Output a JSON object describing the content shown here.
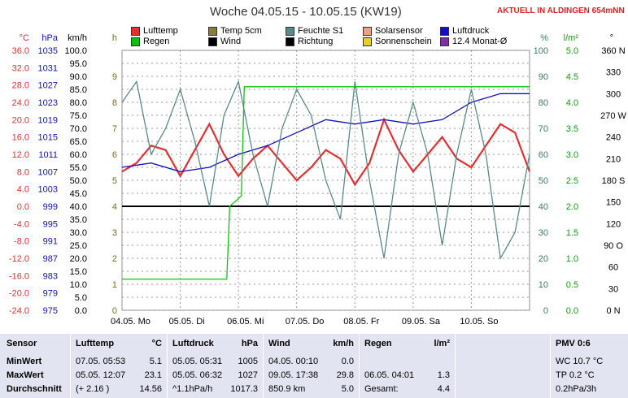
{
  "header": {
    "title": "Woche 04.05.15 - 10.05.15 (KW19)",
    "current": "AKTUELL IN ALDINGEN 654mNN"
  },
  "legend": [
    {
      "label": "Lufttemp",
      "color": "#e03030"
    },
    {
      "label": "Temp 5cm",
      "color": "#8a7a40"
    },
    {
      "label": "Feuchte S1",
      "color": "#5a8a88"
    },
    {
      "label": "Solarsensor",
      "color": "#f0a080"
    },
    {
      "label": "Luftdruck",
      "color": "#1010c0"
    },
    {
      "label": "Regen",
      "color": "#10c010"
    },
    {
      "label": "Wind",
      "color": "#000000"
    },
    {
      "label": "Richtung",
      "color": "#000000"
    },
    {
      "label": "Sonnenschein",
      "color": "#e8d020"
    },
    {
      "label": "12.4 Monat-Ø",
      "color": "#8030a0"
    }
  ],
  "axis_units": {
    "temp": "°C",
    "hpa": "hPa",
    "kmh": "km/h",
    "h": "h",
    "pct": "%",
    "lm2": "l/m²",
    "deg": "°"
  },
  "chart_data": {
    "type": "line",
    "x_labels": [
      "04.05. Mo",
      "05.05. Di",
      "06.05. Mi",
      "07.05. Do",
      "08.05. Fr",
      "09.05. Sa",
      "10.05. So"
    ],
    "axes": {
      "temp": {
        "ticks": [
          "36.0",
          "32.0",
          "28.0",
          "24.0",
          "20.0",
          "16.0",
          "12.0",
          "8.0",
          "4.0",
          "0.0",
          "-4.0",
          "-8.0",
          "-12.0",
          "-16.0",
          "-20.0",
          "-24.0"
        ],
        "ylim": [
          -24,
          36
        ]
      },
      "hpa": {
        "ticks": [
          "1035",
          "1031",
          "1027",
          "1023",
          "1019",
          "1015",
          "1011",
          "1007",
          "1003",
          "999",
          "995",
          "991",
          "987",
          "983",
          "979",
          "975"
        ],
        "ylim": [
          975,
          1035
        ]
      },
      "kmh": {
        "ticks": [
          "100.0",
          "95.0",
          "90.0",
          "85.0",
          "80.0",
          "75.0",
          "70.0",
          "65.0",
          "60.0",
          "55.0",
          "50.0",
          "45.0",
          "40.0",
          "35.0",
          "30.0",
          "25.0",
          "20.0",
          "15.0",
          "10.0",
          "5.0",
          "0.0"
        ],
        "ylim": [
          0,
          100
        ]
      },
      "h": {
        "ticks": [
          "9",
          "8",
          "7",
          "6",
          "5",
          "4",
          "3",
          "2",
          "1",
          "0"
        ],
        "ylim": [
          0,
          10
        ]
      },
      "pct": {
        "ticks": [
          "100",
          "90",
          "80",
          "70",
          "60",
          "50",
          "40",
          "30",
          "20",
          "10",
          "0"
        ],
        "ylim": [
          0,
          100
        ]
      },
      "lm2": {
        "ticks": [
          "5.0",
          "4.5",
          "4.0",
          "3.5",
          "3.0",
          "2.5",
          "2.0",
          "1.5",
          "1.0",
          "0.5",
          "0.0"
        ],
        "ylim": [
          0,
          5
        ]
      },
      "deg": {
        "ticks": [
          "360 N",
          "330",
          "300",
          "270 W",
          "240",
          "210",
          "180 S",
          "150",
          "120",
          "90 O",
          "60",
          "30",
          "0 N"
        ],
        "ylim": [
          0,
          360
        ]
      }
    },
    "series": [
      {
        "name": "Lufttemp",
        "x": [
          0,
          0.25,
          0.5,
          0.75,
          1,
          1.25,
          1.5,
          1.75,
          2,
          2.25,
          2.5,
          2.75,
          3,
          3.25,
          3.5,
          3.75,
          4,
          4.25,
          4.5,
          4.75,
          5,
          5.25,
          5.5,
          5.75,
          6,
          6.25,
          6.5,
          6.75,
          7
        ],
        "values": [
          8,
          10,
          14,
          13,
          7,
          13,
          19,
          12,
          7,
          11,
          14,
          10,
          6,
          9,
          13,
          11,
          5,
          10,
          20,
          13,
          8,
          12,
          16,
          11,
          9,
          14,
          19,
          17,
          8
        ]
      },
      {
        "name": "Luftdruck",
        "x": [
          0,
          0.5,
          1,
          1.5,
          2,
          2.5,
          3,
          3.5,
          4,
          4.5,
          5,
          5.5,
          6,
          6.5,
          7
        ],
        "values": [
          1008,
          1009,
          1007,
          1008,
          1011,
          1013,
          1016,
          1019,
          1018,
          1019,
          1018,
          1019,
          1023,
          1025,
          1025
        ]
      },
      {
        "name": "Feuchte S1",
        "x": [
          0,
          0.25,
          0.5,
          0.75,
          1,
          1.25,
          1.5,
          1.75,
          2,
          2.25,
          2.5,
          2.75,
          3,
          3.25,
          3.5,
          3.75,
          4,
          4.25,
          4.5,
          4.75,
          5,
          5.25,
          5.5,
          5.75,
          6,
          6.25,
          6.5,
          6.75,
          7
        ],
        "values": [
          80,
          88,
          60,
          70,
          85,
          65,
          40,
          75,
          88,
          60,
          40,
          70,
          85,
          75,
          50,
          35,
          88,
          50,
          20,
          60,
          80,
          60,
          25,
          60,
          85,
          60,
          20,
          30,
          60
        ]
      },
      {
        "name": "Regen",
        "x": [
          0,
          1.8,
          1.85,
          2.05,
          2.1,
          2.5,
          7
        ],
        "values": [
          0.6,
          0.6,
          2.0,
          2.2,
          4.3,
          4.3,
          4.3
        ]
      }
    ],
    "ylabel_left": "°C",
    "grid": true
  },
  "stats": {
    "sensor": {
      "title": "Sensor",
      "rows": [
        "MinWert",
        "MaxWert",
        "Durchschnitt"
      ]
    },
    "lufttemp": {
      "title": "Lufttemp",
      "unit": "°C",
      "rows": [
        {
          "a": "07.05.  05:53",
          "v": "5.1"
        },
        {
          "a": "05.05.  12:07",
          "v": "23.1"
        },
        {
          "a": "(+ 2.16 )",
          "v": "14.56"
        }
      ]
    },
    "luftdruck": {
      "title": "Luftdruck",
      "unit": "hPa",
      "rows": [
        {
          "a": "05.05.  05:31",
          "v": "1005"
        },
        {
          "a": "05.05.  06:32",
          "v": "1027"
        },
        {
          "a": "^1.1hPa/h",
          "v": "1017.3"
        }
      ]
    },
    "wind": {
      "title": "Wind",
      "unit": "km/h",
      "rows": [
        {
          "a": "04.05.  00:10",
          "v": "0.0"
        },
        {
          "a": "09.05.  17:38",
          "v": "29.8"
        },
        {
          "a": "850.9 km",
          "v": "5.0"
        }
      ]
    },
    "regen": {
      "title": "Regen",
      "unit": "l/m²",
      "rows": [
        {
          "a": "",
          "v": ""
        },
        {
          "a": "06.05.  04:01",
          "v": "1.3"
        },
        {
          "a": "Gesamt:",
          "v": "4.4"
        }
      ]
    },
    "pmv": {
      "title": "PMV 0:6",
      "rows": [
        "WC 10.7 °C",
        "TP 0.2 °C",
        "0.2hPa/3h"
      ]
    }
  }
}
